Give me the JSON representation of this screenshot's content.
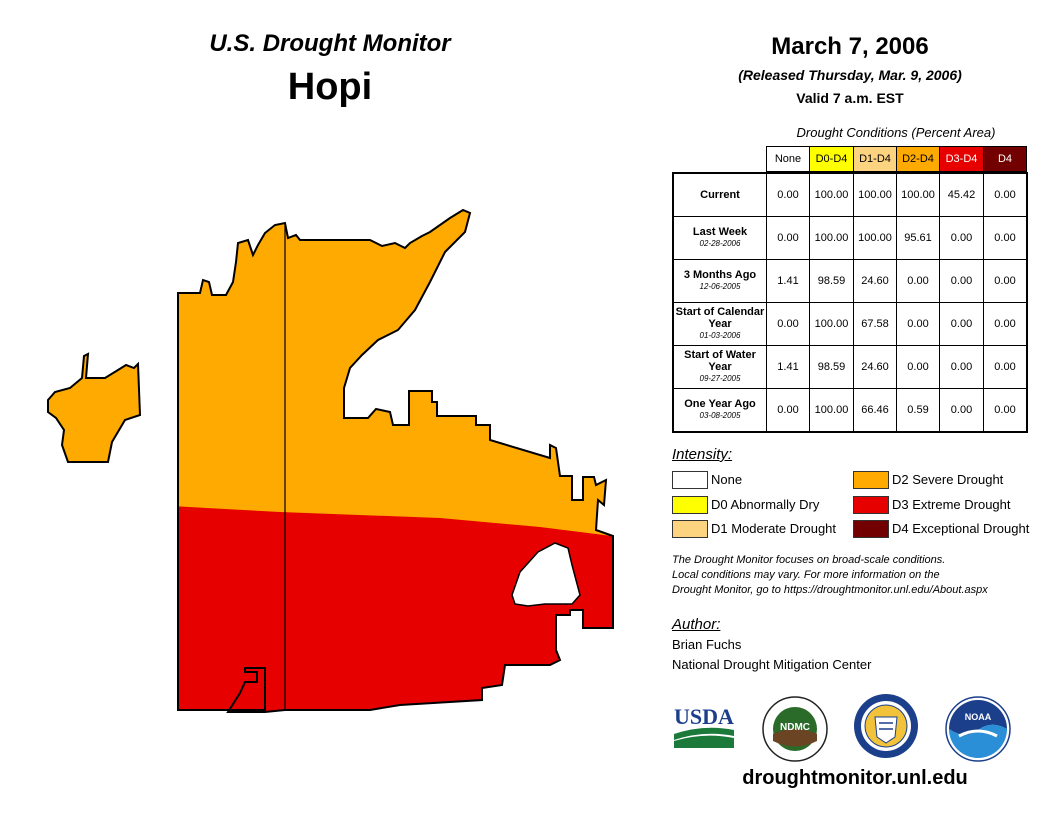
{
  "header": {
    "monitor_title": "U.S. Drought Monitor",
    "region": "Hopi",
    "date": "March 7, 2006",
    "released": "(Released Thursday, Mar. 9, 2006)",
    "valid": "Valid 7 a.m. EST"
  },
  "table": {
    "caption": "Drought Conditions (Percent Area)",
    "columns": [
      {
        "label": "None",
        "bg": "#ffffff",
        "fg": "#000000"
      },
      {
        "label": "D0-D4",
        "bg": "#ffff00",
        "fg": "#000000"
      },
      {
        "label": "D1-D4",
        "bg": "#fcd37f",
        "fg": "#000000"
      },
      {
        "label": "D2-D4",
        "bg": "#ffaa00",
        "fg": "#000000"
      },
      {
        "label": "D3-D4",
        "bg": "#e60000",
        "fg": "#ffffff"
      },
      {
        "label": "D4",
        "bg": "#730000",
        "fg": "#ffffff"
      }
    ],
    "rows": [
      {
        "label": "Current",
        "date": "",
        "values": [
          "0.00",
          "100.00",
          "100.00",
          "100.00",
          "45.42",
          "0.00"
        ]
      },
      {
        "label": "Last Week",
        "date": "02-28-2006",
        "values": [
          "0.00",
          "100.00",
          "100.00",
          "95.61",
          "0.00",
          "0.00"
        ]
      },
      {
        "label": "3 Months Ago",
        "date": "12-06-2005",
        "values": [
          "1.41",
          "98.59",
          "24.60",
          "0.00",
          "0.00",
          "0.00"
        ]
      },
      {
        "label": "Start of Calendar Year",
        "date": "01-03-2006",
        "values": [
          "0.00",
          "100.00",
          "67.58",
          "0.00",
          "0.00",
          "0.00"
        ]
      },
      {
        "label": "Start of Water Year",
        "date": "09-27-2005",
        "values": [
          "1.41",
          "98.59",
          "24.60",
          "0.00",
          "0.00",
          "0.00"
        ]
      },
      {
        "label": "One Year Ago",
        "date": "03-08-2005",
        "values": [
          "0.00",
          "100.00",
          "66.46",
          "0.59",
          "0.00",
          "0.00"
        ]
      }
    ]
  },
  "legend": {
    "heading": "Intensity:",
    "items": [
      {
        "label": "None",
        "color": "#ffffff"
      },
      {
        "label": "D0 Abnormally Dry",
        "color": "#ffff00"
      },
      {
        "label": "D1 Moderate Drought",
        "color": "#fcd37f"
      },
      {
        "label": "D2 Severe Drought",
        "color": "#ffaa00"
      },
      {
        "label": "D3 Extreme Drought",
        "color": "#e60000"
      },
      {
        "label": "D4 Exceptional Drought",
        "color": "#730000"
      }
    ]
  },
  "note": {
    "line1": "The Drought Monitor focuses on broad-scale conditions.",
    "line2": "Local conditions may vary. For more information on the",
    "line3": "Drought Monitor, go to https://droughtmonitor.unl.edu/About.aspx"
  },
  "author": {
    "heading": "Author:",
    "name": "Brian Fuchs",
    "org": "National Drought Mitigation Center"
  },
  "logos": {
    "usda": "USDA",
    "ndmc": "NDMC",
    "noaa": "NOAA"
  },
  "map_colors": {
    "d2": "#ffaa00",
    "d3": "#e60000",
    "none": "#ffffff"
  },
  "website": "droughtmonitor.unl.edu"
}
